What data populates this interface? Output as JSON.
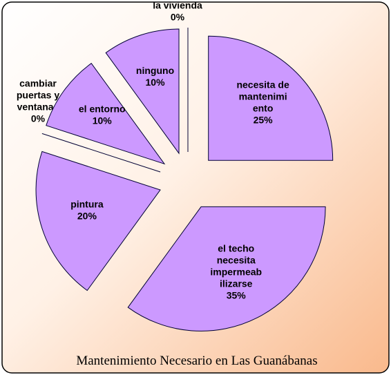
{
  "chart_data": {
    "type": "pie",
    "title": "Mantenimiento Necesario en Las Guanábanas",
    "categories": [
      "necesita de\nmantenimi\nento",
      "el techo\nnecesita\nimpermeab\nilizarse",
      "pintura",
      "cambiar\npuertas y\nventanas",
      "el entorno",
      "ninguno",
      "arreglo\nsustancial a\nla vivienda"
    ],
    "values": [
      25,
      35,
      20,
      0,
      10,
      10,
      0
    ],
    "value_labels": [
      "25%",
      "35%",
      "20%",
      "0%",
      "10%",
      "10%",
      "0%"
    ],
    "color": "#cc99ff"
  }
}
